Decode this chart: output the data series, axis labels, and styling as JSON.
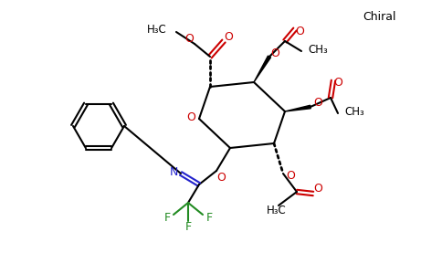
{
  "bg_color": "#ffffff",
  "figsize": [
    4.84,
    3.0
  ],
  "dpi": 100,
  "colors": {
    "black": "#000000",
    "red": "#cc0000",
    "blue": "#2222cc",
    "green": "#228B22"
  },
  "chiral_label": "Chiral",
  "ring_O_label": "O",
  "N_label": "N",
  "F_labels": [
    "F",
    "F",
    "F"
  ]
}
